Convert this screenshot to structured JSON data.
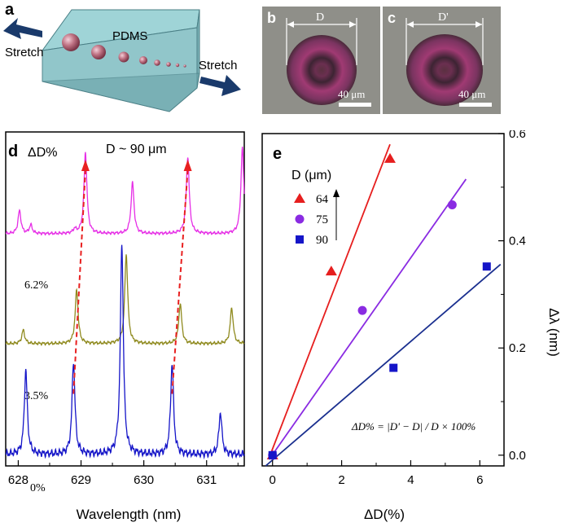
{
  "panel_a": {
    "letter": "a",
    "material": "PDMS",
    "stretch_left": "Stretch",
    "stretch_right": "Stretch"
  },
  "panel_b": {
    "letter": "b",
    "dim_label": "D",
    "scale": "40 μm"
  },
  "panel_c": {
    "letter": "c",
    "dim_label": "D'",
    "scale": "40 μm"
  },
  "colors": {
    "magenta": "#e62ee6",
    "olive": "#8f8a1e",
    "blue": "#1515c8",
    "red": "#e61e1e",
    "purple": "#8a2be2",
    "navy": "#1a2f8f",
    "dashed": "#e82020"
  },
  "chart_data": [
    {
      "type": "line",
      "panel": "d",
      "letter": "d",
      "title": "D ~ 90 μm",
      "legend_heading": "ΔD%",
      "xlabel": "Wavelength (nm)",
      "ylabel": "",
      "xlim": [
        627.8,
        631.6
      ],
      "x_ticks": [
        628,
        629,
        630,
        631
      ],
      "series": [
        {
          "name": "6.2%",
          "color": "#e62ee6",
          "baseline": 0.0,
          "peaks": [
            [
              628.02,
              0.27
            ],
            [
              628.2,
              0.1
            ],
            [
              628.9,
              0.05
            ],
            [
              629.07,
              0.95
            ],
            [
              629.82,
              0.6
            ],
            [
              630.7,
              0.9
            ],
            [
              631.57,
              1.0
            ]
          ]
        },
        {
          "name": "3.5%",
          "color": "#8f8a1e",
          "baseline": 0.0,
          "peaks": [
            [
              628.08,
              0.15
            ],
            [
              628.93,
              0.6
            ],
            [
              629.72,
              1.0
            ],
            [
              630.58,
              0.45
            ],
            [
              631.4,
              0.4
            ]
          ]
        },
        {
          "name": "0%",
          "color": "#1515c8",
          "baseline": 0.0,
          "peaks": [
            [
              628.12,
              0.4
            ],
            [
              628.88,
              0.44
            ],
            [
              629.65,
              1.0
            ],
            [
              630.45,
              0.43
            ],
            [
              631.22,
              0.2
            ]
          ]
        }
      ]
    },
    {
      "type": "scatter",
      "panel": "e",
      "letter": "e",
      "legend_title": "D (μm)",
      "xlabel": "ΔD(%)",
      "ylabel": "Δλ (nm)",
      "xlim": [
        -0.3,
        6.7
      ],
      "ylim": [
        -0.02,
        0.6
      ],
      "x_ticks": [
        0,
        2,
        4,
        6
      ],
      "y_ticks": [
        0.0,
        0.2,
        0.4,
        0.6
      ],
      "y_tick_labels": [
        "0.0",
        "0.2",
        "0.4",
        "0.6"
      ],
      "formula": "ΔD% = |D' − D| / D × 100%",
      "series": [
        {
          "name": "64",
          "color": "#e61e1e",
          "marker": "triangle",
          "line_color": "#e61e1e",
          "x": [
            0,
            1.7,
            3.4
          ],
          "y": [
            0,
            0.343,
            0.553
          ],
          "fit": [
            [
              -0.1,
              -0.005
            ],
            [
              3.4,
              0.58
            ]
          ]
        },
        {
          "name": "75",
          "color": "#8a2be2",
          "marker": "circle",
          "line_color": "#8a2be2",
          "x": [
            0,
            2.6,
            5.2
          ],
          "y": [
            0,
            0.27,
            0.467
          ],
          "fit": [
            [
              -0.1,
              -0.008
            ],
            [
              5.6,
              0.515
            ]
          ]
        },
        {
          "name": "90",
          "color": "#1515c8",
          "marker": "square",
          "line_color": "#1a2f8f",
          "x": [
            0,
            3.5,
            6.2
          ],
          "y": [
            0,
            0.163,
            0.352
          ],
          "fit": [
            [
              -0.2,
              -0.02
            ],
            [
              6.6,
              0.356
            ]
          ]
        }
      ]
    }
  ]
}
